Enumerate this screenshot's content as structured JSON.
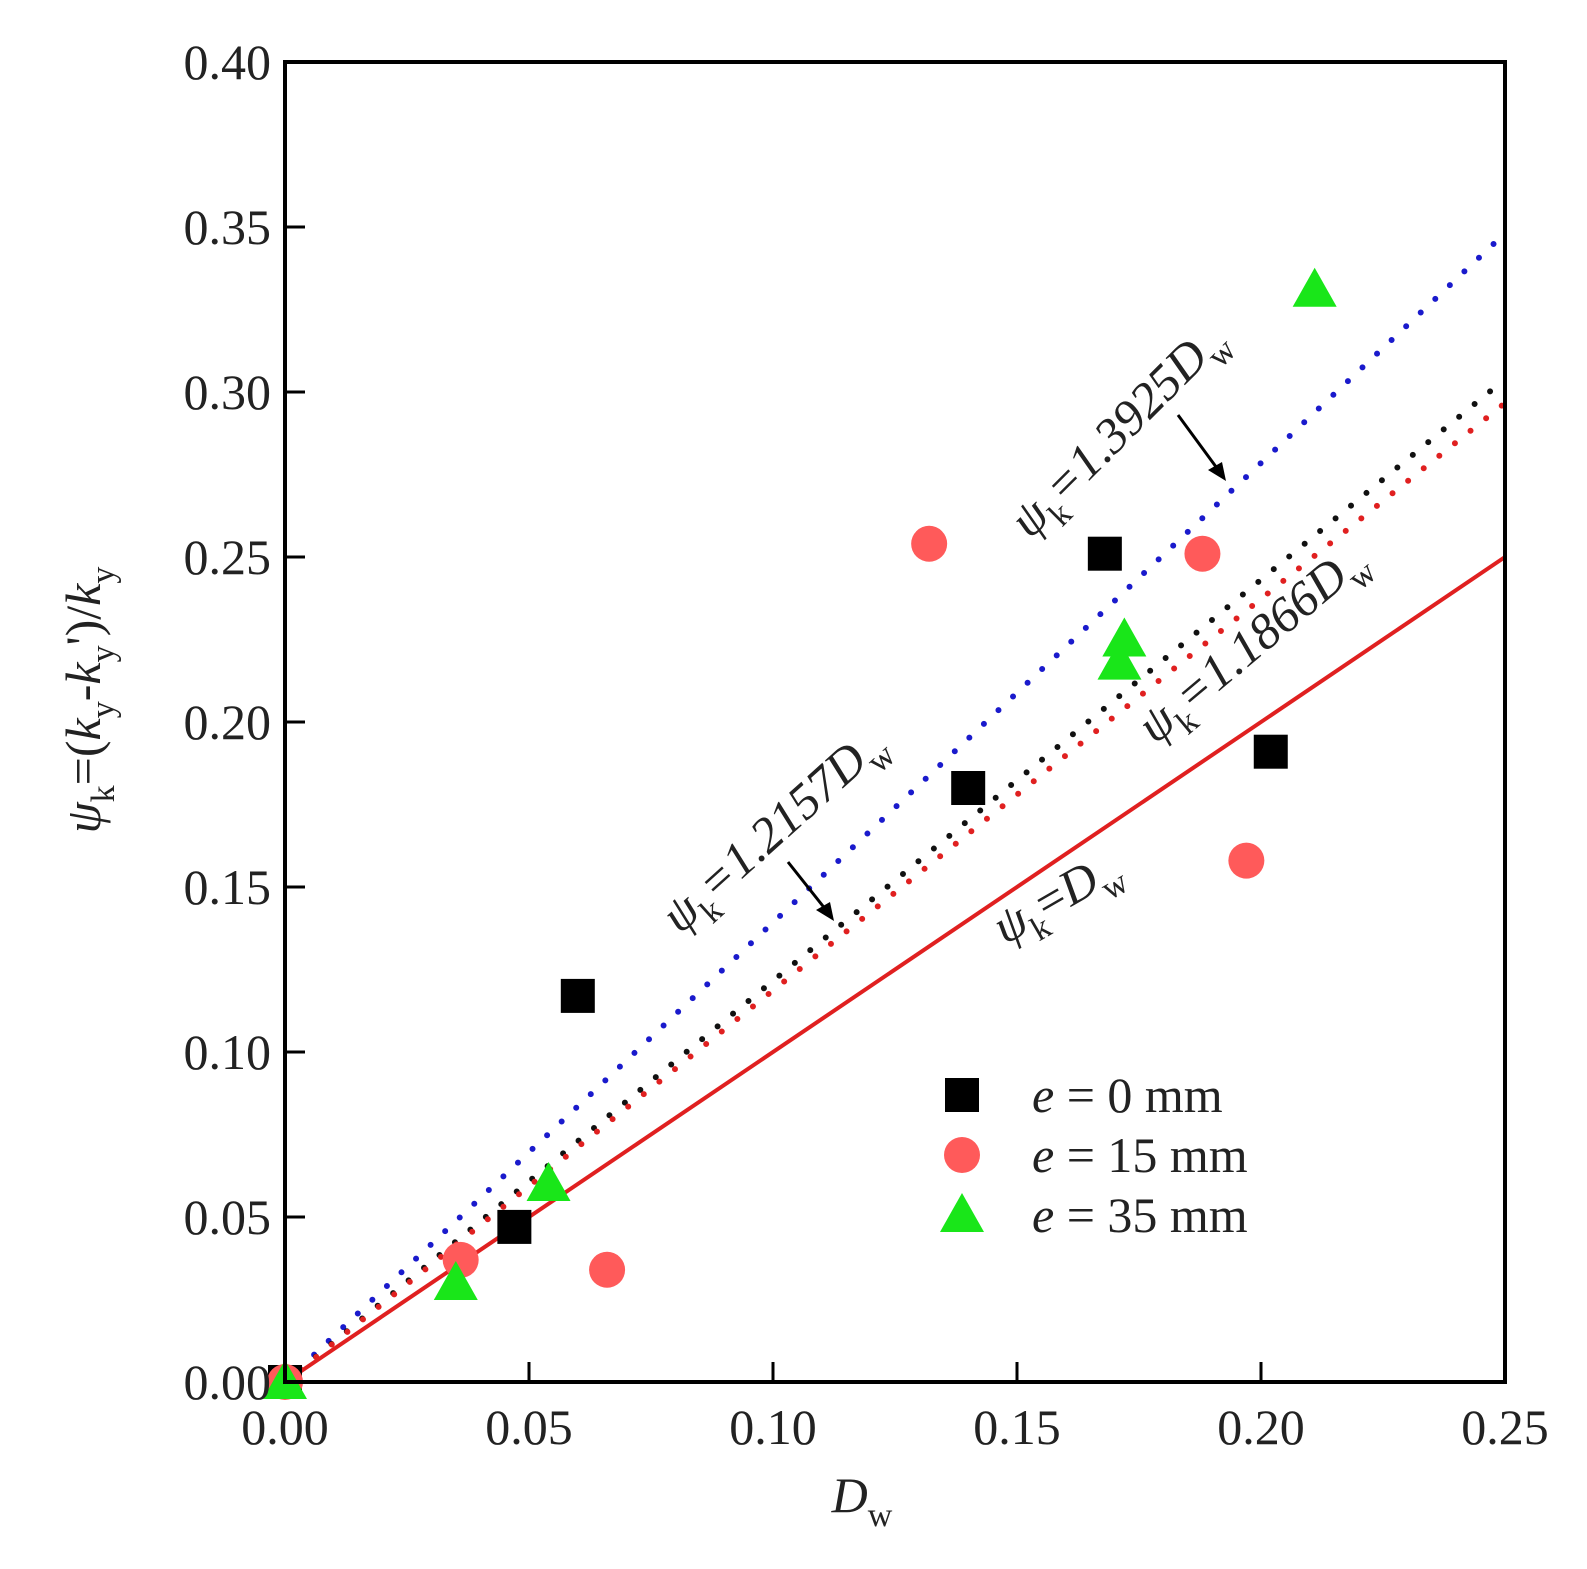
{
  "chart_data": {
    "type": "scatter",
    "title": "",
    "xlabel": {
      "main": "D",
      "sub": "w"
    },
    "ylabel": {
      "psi": "ψ",
      "psi_sub": "k",
      "eq": "=(",
      "k1": "k",
      "k1_sub": "y",
      "minus": "-",
      "k2": "k",
      "k2_sub": "y",
      "prime_close": "')/",
      "k3": "k",
      "k3_sub": "y"
    },
    "xlim": [
      0,
      0.25
    ],
    "ylim": [
      0,
      0.4
    ],
    "xticks": [
      0.0,
      0.05,
      0.1,
      0.15,
      0.2,
      0.25
    ],
    "yticks": [
      0.0,
      0.05,
      0.1,
      0.15,
      0.2,
      0.25,
      0.3,
      0.35,
      0.4
    ],
    "xtick_labels": [
      "0.00",
      "0.05",
      "0.10",
      "0.15",
      "0.20",
      "0.25"
    ],
    "ytick_labels": [
      "0.00",
      "0.05",
      "0.10",
      "0.15",
      "0.20",
      "0.25",
      "0.30",
      "0.35",
      "0.40"
    ],
    "legend_position": "lower-right",
    "series": [
      {
        "name": "e = 0 mm",
        "label_e": "e",
        "label_rest": " = 0 mm",
        "marker": "square",
        "color": "#000000",
        "points": [
          [
            0.0,
            0.0
          ],
          [
            0.047,
            0.047
          ],
          [
            0.06,
            0.117
          ],
          [
            0.14,
            0.18
          ],
          [
            0.168,
            0.251
          ],
          [
            0.202,
            0.191
          ]
        ]
      },
      {
        "name": "e = 15 mm",
        "label_e": "e",
        "label_rest": " = 15 mm",
        "marker": "circle",
        "color": "#ff5a5a",
        "points": [
          [
            0.0,
            0.0
          ],
          [
            0.036,
            0.037
          ],
          [
            0.066,
            0.034
          ],
          [
            0.132,
            0.254
          ],
          [
            0.188,
            0.251
          ],
          [
            0.197,
            0.158
          ]
        ]
      },
      {
        "name": "e = 35 mm",
        "label_e": "e",
        "label_rest": " = 35 mm",
        "marker": "triangle",
        "color": "#19e619",
        "points": [
          [
            0.0,
            0.0
          ],
          [
            0.035,
            0.03
          ],
          [
            0.054,
            0.06
          ],
          [
            0.171,
            0.218
          ],
          [
            0.172,
            0.225
          ],
          [
            0.211,
            0.331
          ]
        ]
      }
    ],
    "fit_lines": [
      {
        "slope": 1.3925,
        "color": "#1a1acc",
        "style": "dotted",
        "psi": "ψ",
        "sub": "k",
        "coef": "=1.3925",
        "var": "D",
        "var_sub": "w"
      },
      {
        "slope": 1.2157,
        "color": "#111111",
        "style": "dotted",
        "psi": "ψ",
        "sub": "k",
        "coef": "=1.2157",
        "var": "D",
        "var_sub": "w"
      },
      {
        "slope": 1.1866,
        "color": "#e02020",
        "style": "dotted",
        "psi": "ψ",
        "sub": "k",
        "coef": "=1.1866",
        "var": "D",
        "var_sub": "w"
      },
      {
        "slope": 1.0,
        "color": "#e02020",
        "style": "solid",
        "psi": "ψ",
        "sub": "k",
        "coef": "=",
        "var": "D",
        "var_sub": "w"
      }
    ],
    "colors": {
      "axis": "#000000",
      "background": "#ffffff"
    }
  }
}
